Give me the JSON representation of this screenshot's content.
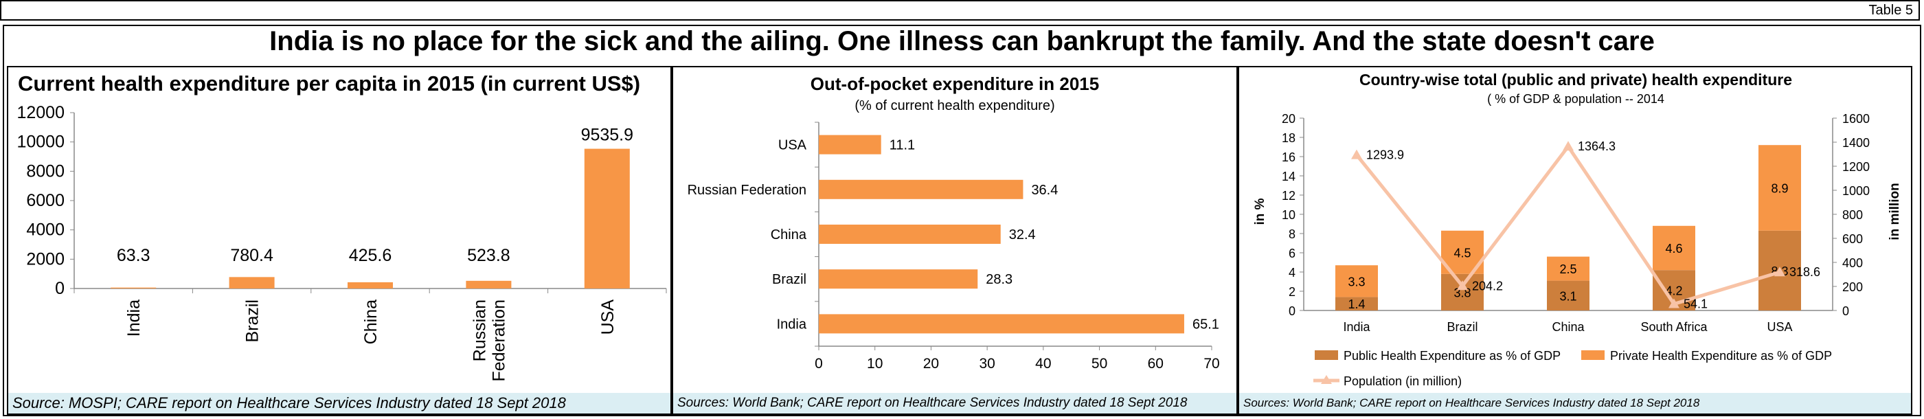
{
  "table_label": "Table 5",
  "headline": "India is no place for the sick and the ailing. One illness can bankrupt the family. And the state doesn't care",
  "colors": {
    "orange": "#f79646",
    "dark_orange": "#cd7f3c",
    "population_line": "#f8c3a6",
    "source_bg": "#dbeef3"
  },
  "chart_data": [
    {
      "type": "bar",
      "title": "Current health expenditure per capita in 2015 (in current US$)",
      "categories": [
        "India",
        "Brazil",
        "China",
        "Russian Federation",
        "USA"
      ],
      "values": [
        63.3,
        780.4,
        425.6,
        523.8,
        9535.9
      ],
      "value_labels": [
        "63.3",
        "780.4",
        "425.6",
        "523.8",
        "9535.9"
      ],
      "ylim": [
        0,
        12000
      ],
      "yticks": [
        0,
        2000,
        4000,
        6000,
        8000,
        10000,
        12000
      ],
      "grid": false,
      "source": "Source: MOSPI; CARE report on Healthcare Services Industry dated 18 Sept 2018"
    },
    {
      "type": "bar",
      "orientation": "horizontal",
      "title": "Out-of-pocket expenditure in 2015",
      "subtitle": "(% of current health expenditure)",
      "categories": [
        "USA",
        "Russian Federation",
        "China",
        "Brazil",
        "India"
      ],
      "values": [
        11.1,
        36.4,
        32.4,
        28.3,
        65.1
      ],
      "value_labels": [
        "11.1",
        "36.4",
        "32.4",
        "28.3",
        "65.1"
      ],
      "xlim": [
        0,
        70
      ],
      "xticks": [
        0,
        10,
        20,
        30,
        40,
        50,
        60,
        70
      ],
      "grid": false,
      "source": "Sources: World Bank; CARE report on Healthcare Services Industry dated 18 Sept 2018"
    },
    {
      "type": "bar",
      "stacked": true,
      "title": "Country-wise total (public and private) health expenditure",
      "subtitle": "( % of GDP & population -- 2014",
      "categories": [
        "India",
        "Brazil",
        "China",
        "South Africa",
        "USA"
      ],
      "ylabel": "in %",
      "y2label": "in million",
      "ylim": [
        0,
        20
      ],
      "yticks": [
        0,
        2,
        4,
        6,
        8,
        10,
        12,
        14,
        16,
        18,
        20
      ],
      "y2lim": [
        0,
        1600
      ],
      "y2ticks": [
        0,
        200,
        400,
        600,
        800,
        1000,
        1200,
        1400,
        1600
      ],
      "series": [
        {
          "name": "Public Health Expenditure as % of GDP",
          "values": [
            1.4,
            3.8,
            3.1,
            4.2,
            8.3
          ],
          "labels": [
            "1.4",
            "3.8",
            "3.1",
            "4.2",
            "8.3"
          ]
        },
        {
          "name": "Private Health Expenditure as % of GDP",
          "values": [
            3.3,
            4.5,
            2.5,
            4.6,
            8.9
          ],
          "labels": [
            "3.3",
            "4.5",
            "2.5",
            "4.6",
            "8.9"
          ]
        }
      ],
      "line_series": {
        "name": "Population (in million)",
        "axis": "secondary",
        "values": [
          1293.9,
          204.2,
          1364.3,
          54.1,
          318.6
        ],
        "labels": [
          "1293.9",
          "204.2",
          "1364.3",
          "54.1",
          "318.6"
        ]
      },
      "legend": "bottom",
      "grid": false,
      "source": "Sources: World Bank; CARE report on Healthcare Services Industry dated 18 Sept 2018"
    }
  ]
}
